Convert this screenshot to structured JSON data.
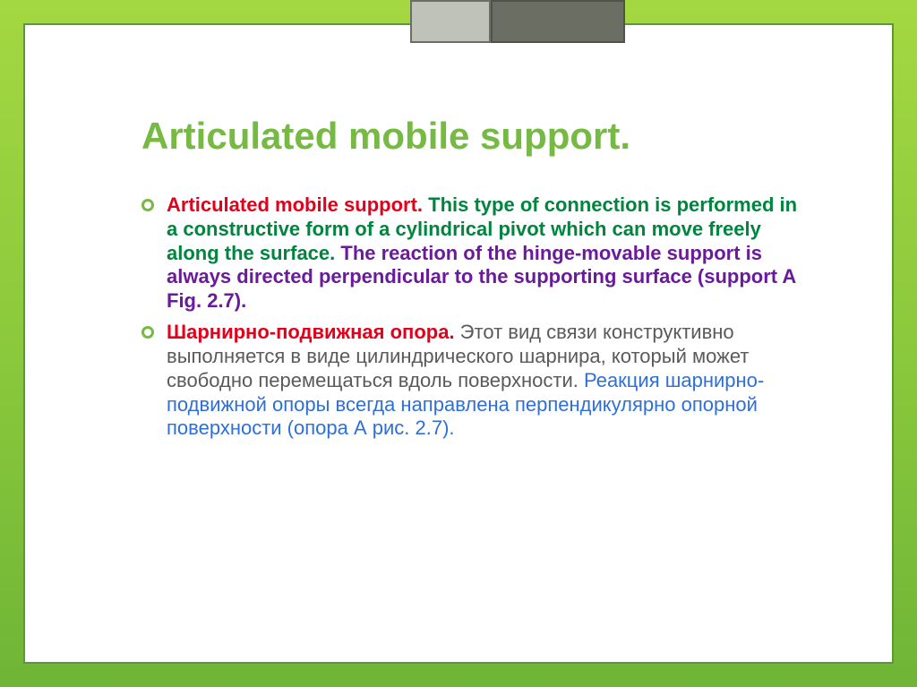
{
  "colors": {
    "bg_gradient_top": "#a4d842",
    "bg_gradient_mid": "#8bc93c",
    "bg_gradient_bottom": "#6fb536",
    "slide_border": "#5a9a2e",
    "title_color": "#76b943",
    "bullet_color": "#76b943",
    "red": "#e2001a",
    "green": "#00853f",
    "purple": "#6a1b9a",
    "blue": "#2e6fd9",
    "grey": "#5a5a5a",
    "decor_light": "#bfc2b8",
    "decor_dark": "#6b6e63"
  },
  "title": "Articulated mobile support.",
  "title_fontsize": 42,
  "body_fontsize": 22,
  "items": [
    {
      "lead": "Articulated mobile support.",
      "middle": " This type of connection is performed in a constructive form of a cylindrical pivot which can move freely along the surface. ",
      "tail": "The reaction of the hinge-movable support is always directed perpendicular to the supporting surface (support A Fig. 2.7)."
    },
    {
      "lead": "Шарнирно-подвижная опора.",
      "middle": " Этот вид связи конструктивно выполняется в виде цилиндрического шарнира, который может свободно перемещаться вдоль поверхности. ",
      "tail": "Реакция шарнирно-подвижной опоры всегда направлена перпендикулярно опорной поверхности (опора А рис. 2.7)."
    }
  ]
}
